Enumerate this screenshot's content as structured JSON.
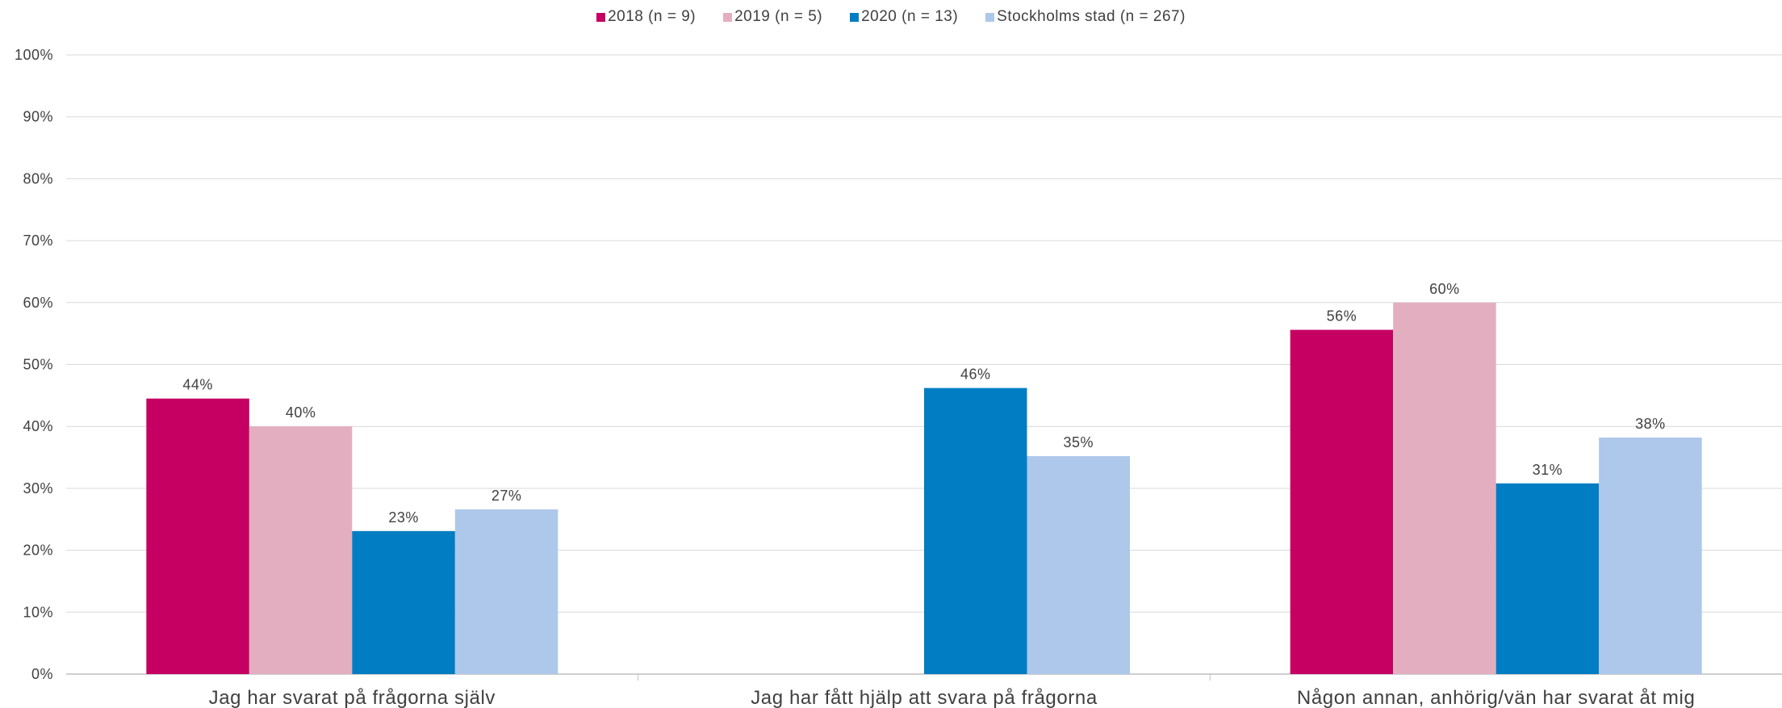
{
  "chart_data": {
    "type": "bar",
    "categories": [
      "Jag har svarat på frågorna själv",
      "Jag har fått hjälp att svara på frågorna",
      "Någon annan, anhörig/vän har svarat åt mig"
    ],
    "series": [
      {
        "name": "2018 (n = 9)",
        "color": "#C60063",
        "values": [
          44.5,
          null,
          55.6
        ],
        "labels": [
          "44%",
          "",
          "56%"
        ]
      },
      {
        "name": "2019 (n = 5)",
        "color": "#E3AFC0",
        "values": [
          40,
          null,
          60
        ],
        "labels": [
          "40%",
          "",
          "60%"
        ]
      },
      {
        "name": "2020 (n = 13)",
        "color": "#007DC3",
        "values": [
          23.1,
          46.2,
          30.8
        ],
        "labels": [
          "23%",
          "46%",
          "31%"
        ]
      },
      {
        "name": "Stockholms stad (n = 267)",
        "color": "#ADC8EA",
        "values": [
          26.6,
          35.2,
          38.2
        ],
        "labels": [
          "27%",
          "35%",
          "38%"
        ]
      }
    ],
    "ylim": [
      0,
      100
    ],
    "yticks": [
      "0%",
      "10%",
      "20%",
      "30%",
      "40%",
      "50%",
      "60%",
      "70%",
      "80%",
      "90%",
      "100%"
    ],
    "grid": true,
    "legend_position": "top-center",
    "gridline_color": "#D9D9D9",
    "axis_color": "#BFBFBF"
  }
}
